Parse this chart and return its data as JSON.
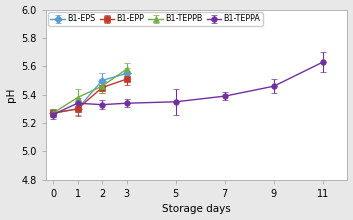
{
  "series": {
    "B1-EPS": {
      "x": [
        0,
        1,
        2,
        3
      ],
      "y": [
        5.27,
        5.3,
        5.5,
        5.55
      ],
      "yerr": [
        0.03,
        0.04,
        0.05,
        0.04
      ],
      "color": "#5b9bd5",
      "marker": "D",
      "markersize": 4,
      "linestyle": "-"
    },
    "B1-EPP": {
      "x": [
        0,
        1,
        2,
        3
      ],
      "y": [
        5.27,
        5.3,
        5.45,
        5.51
      ],
      "yerr": [
        0.03,
        0.05,
        0.04,
        0.04
      ],
      "color": "#c0392b",
      "marker": "s",
      "markersize": 4,
      "linestyle": "-"
    },
    "B1-TEPPB": {
      "x": [
        0,
        1,
        2,
        3
      ],
      "y": [
        5.27,
        5.38,
        5.46,
        5.58
      ],
      "yerr": [
        0.03,
        0.06,
        0.05,
        0.04
      ],
      "color": "#70ad47",
      "marker": "^",
      "markersize": 4,
      "linestyle": "-"
    },
    "B1-TEPPA": {
      "x": [
        0,
        1,
        2,
        3,
        5,
        7,
        9,
        11
      ],
      "y": [
        5.26,
        5.34,
        5.33,
        5.34,
        5.35,
        5.39,
        5.46,
        5.63
      ],
      "yerr": [
        0.03,
        0.04,
        0.03,
        0.03,
        0.09,
        0.03,
        0.05,
        0.07
      ],
      "color": "#7030a0",
      "marker": "o",
      "markersize": 4,
      "linestyle": "-"
    }
  },
  "xlabel": "Storage days",
  "ylabel": "pH",
  "xlim": [
    -0.3,
    12.0
  ],
  "ylim": [
    4.8,
    6.0
  ],
  "yticks": [
    4.8,
    5.0,
    5.2,
    5.4,
    5.6,
    5.8,
    6.0
  ],
  "xticks": [
    0,
    1,
    2,
    3,
    5,
    7,
    9,
    11
  ],
  "legend_order": [
    "B1-EPS",
    "B1-EPP",
    "B1-TEPPB",
    "B1-TEPPA"
  ],
  "background_color": "#ffffff",
  "fig_background_color": "#e8e8e8"
}
